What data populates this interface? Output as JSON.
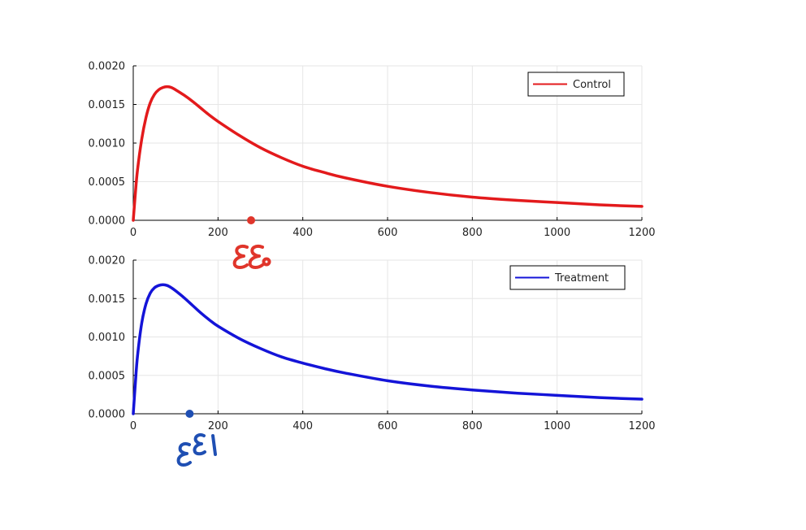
{
  "chart_data": [
    {
      "type": "line",
      "title": "",
      "xlabel": "",
      "ylabel": "",
      "xlim": [
        0,
        1200
      ],
      "ylim": [
        0,
        0.002
      ],
      "grid": true,
      "legend_position": "top-right",
      "x_ticks": [
        "0",
        "200",
        "400",
        "600",
        "800",
        "1000",
        "1200"
      ],
      "y_ticks": [
        "0.0000",
        "0.0005",
        "0.0010",
        "0.0015",
        "0.0020"
      ],
      "series": [
        {
          "name": "Control",
          "color": "#e31a1c",
          "x": [
            0,
            5,
            10,
            20,
            30,
            40,
            50,
            60,
            70,
            80,
            90,
            100,
            120,
            140,
            160,
            180,
            200,
            250,
            300,
            350,
            400,
            450,
            500,
            600,
            700,
            800,
            900,
            1000,
            1100,
            1200
          ],
          "values": [
            0.0,
            0.00035,
            0.00065,
            0.00105,
            0.00133,
            0.00152,
            0.00163,
            0.00169,
            0.00172,
            0.00173,
            0.00172,
            0.00169,
            0.00162,
            0.00154,
            0.00145,
            0.00136,
            0.00128,
            0.0011,
            0.00094,
            0.00081,
            0.0007,
            0.00062,
            0.00055,
            0.00044,
            0.00036,
            0.0003,
            0.00026,
            0.00023,
            0.0002,
            0.00018
          ]
        }
      ],
      "annotations": [
        {
          "type": "point",
          "x": 278,
          "y": 0.0,
          "color": "#e0352b"
        }
      ]
    },
    {
      "type": "line",
      "title": "",
      "xlabel": "",
      "ylabel": "",
      "xlim": [
        0,
        1200
      ],
      "ylim": [
        0,
        0.002
      ],
      "grid": true,
      "legend_position": "top-right",
      "x_ticks": [
        "0",
        "200",
        "400",
        "600",
        "800",
        "1000",
        "1200"
      ],
      "y_ticks": [
        "0.0000",
        "0.0005",
        "0.0010",
        "0.0015",
        "0.0020"
      ],
      "series": [
        {
          "name": "Treatment",
          "color": "#1414d8",
          "x": [
            0,
            5,
            10,
            20,
            30,
            40,
            50,
            60,
            70,
            80,
            90,
            100,
            120,
            140,
            160,
            180,
            200,
            250,
            300,
            350,
            400,
            450,
            500,
            600,
            700,
            800,
            900,
            1000,
            1100,
            1200
          ],
          "values": [
            0.0,
            0.0004,
            0.00075,
            0.00118,
            0.00143,
            0.00157,
            0.00164,
            0.00167,
            0.00168,
            0.00167,
            0.00164,
            0.0016,
            0.00151,
            0.00141,
            0.00131,
            0.00122,
            0.00114,
            0.00098,
            0.00085,
            0.00074,
            0.00066,
            0.00059,
            0.00053,
            0.00043,
            0.00036,
            0.00031,
            0.00027,
            0.00024,
            0.00021,
            0.00019
          ]
        }
      ],
      "annotations": [
        {
          "type": "point",
          "x": 133,
          "y": 0.0,
          "color": "#1f4fb3"
        }
      ]
    }
  ],
  "handwriting": [
    {
      "text": "εε₀",
      "color": "#e0352b"
    },
    {
      "text": "ε^ε₁",
      "color": "#1f4fb3"
    }
  ]
}
